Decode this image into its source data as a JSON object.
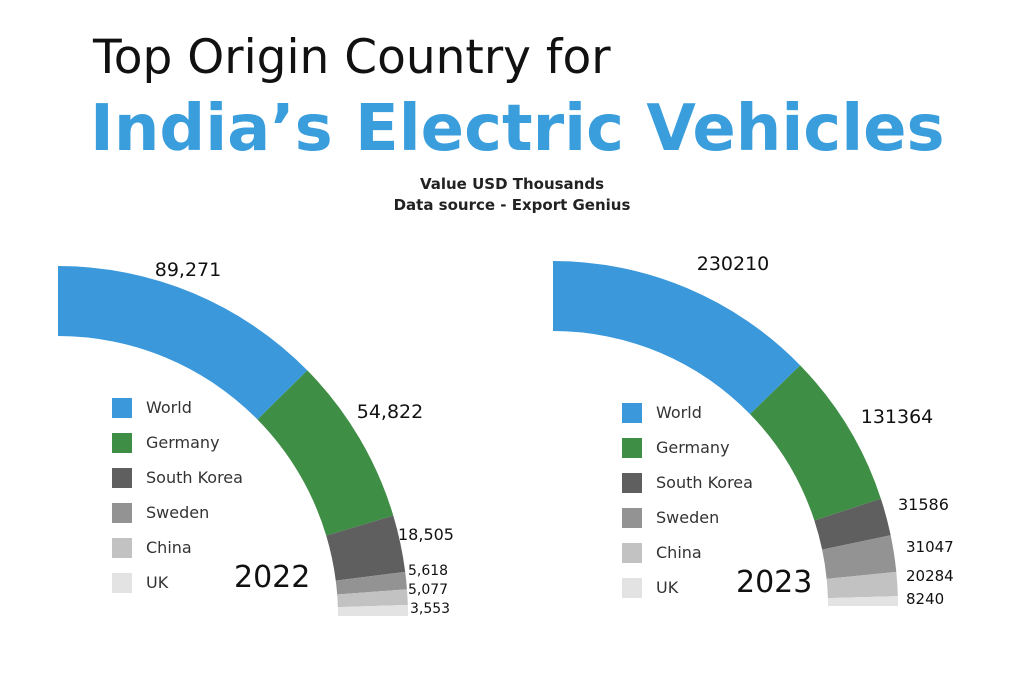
{
  "header": {
    "title_line1": "Top Origin Country for",
    "title_line2": "India’s Electric Vehicles",
    "subtitle_line1": "Value USD Thousands",
    "subtitle_line2": "Data source - Export Genius"
  },
  "chart_data": [
    {
      "type": "pie",
      "variant": "quarter-donut",
      "title": "2022",
      "categories": [
        "World",
        "Germany",
        "South Korea",
        "Sweden",
        "China",
        "UK"
      ],
      "values": [
        89271,
        54822,
        18505,
        5618,
        5077,
        3553
      ],
      "value_labels": [
        "89,271",
        "54,822",
        "18,505",
        "5,618",
        "5,077",
        "3,553"
      ],
      "colors": [
        "#3a98db",
        "#3f8e45",
        "#5f5f5f",
        "#939393",
        "#c2c2c2",
        "#e3e3e3"
      ],
      "legend_position": "inside"
    },
    {
      "type": "pie",
      "variant": "quarter-donut",
      "title": "2023",
      "categories": [
        "World",
        "Germany",
        "South Korea",
        "Sweden",
        "China",
        "UK"
      ],
      "values": [
        230210,
        131364,
        31586,
        31047,
        20284,
        8240
      ],
      "value_labels": [
        "230210",
        "131364",
        "31586",
        "31047",
        "20284",
        "8240"
      ],
      "colors": [
        "#3a98db",
        "#3f8e45",
        "#5f5f5f",
        "#939393",
        "#c2c2c2",
        "#e3e3e3"
      ],
      "legend_position": "inside"
    }
  ]
}
